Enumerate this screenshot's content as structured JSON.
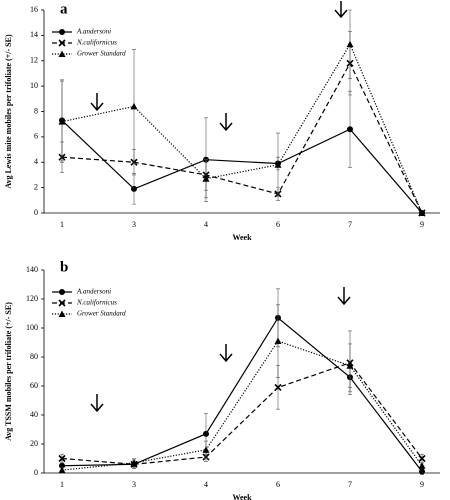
{
  "chart_data": [
    {
      "type": "line",
      "title": "a",
      "xlabel": "Week",
      "ylabel": "Avg Lewis mite mobiles per trifoliate (+/- SE)",
      "categories": [
        "1",
        "3",
        "4",
        "6",
        "7",
        "9"
      ],
      "ylim": [
        0,
        16
      ],
      "yticks": [
        0,
        2,
        4,
        6,
        8,
        10,
        12,
        14,
        16
      ],
      "legend": "upper left",
      "series": [
        {
          "name": "A.andersoni",
          "color": "#000000",
          "marker": "circle",
          "line_style": "solid",
          "values": [
            7.3,
            1.9,
            4.2,
            3.9,
            6.6,
            0
          ],
          "errors": [
            3.2,
            1.2,
            3.3,
            0.5,
            3.0,
            0
          ]
        },
        {
          "name": "N.californicus",
          "color": "#000000",
          "marker": "x",
          "line_style": "dashed",
          "values": [
            4.4,
            4.0,
            3.0,
            1.5,
            11.8,
            0
          ],
          "errors": [
            1.2,
            1.0,
            1.2,
            0.5,
            2.5,
            0
          ]
        },
        {
          "name": "Grower Standard",
          "color": "#000000",
          "marker": "triangle",
          "line_style": "dotted",
          "values": [
            7.2,
            8.4,
            2.7,
            3.8,
            13.3,
            0
          ],
          "errors": [
            3.2,
            4.5,
            1.5,
            2.5,
            2.7,
            0
          ]
        }
      ]
    },
    {
      "type": "line",
      "title": "b",
      "xlabel": "Week",
      "ylabel": "Avg TSSM mobiles per trifoliate (+/- SE)",
      "categories": [
        "1",
        "3",
        "4",
        "6",
        "7",
        "9"
      ],
      "ylim": [
        0,
        140
      ],
      "yticks": [
        0,
        20,
        40,
        60,
        80,
        100,
        120,
        140
      ],
      "legend": "upper left",
      "series": [
        {
          "name": "A.andersoni",
          "color": "#000000",
          "marker": "circle",
          "line_style": "solid",
          "values": [
            5,
            6,
            27,
            107,
            66,
            1
          ],
          "errors": [
            4,
            3,
            14,
            20,
            10,
            2
          ]
        },
        {
          "name": "N.californicus",
          "color": "#000000",
          "marker": "x",
          "line_style": "dashed",
          "values": [
            10,
            6,
            11,
            59,
            76,
            10
          ],
          "errors": [
            3,
            3,
            3,
            15,
            22,
            3
          ]
        },
        {
          "name": "Grower Standard",
          "color": "#000000",
          "marker": "triangle",
          "line_style": "dotted",
          "values": [
            2,
            7,
            16,
            91,
            74,
            5
          ],
          "errors": [
            2,
            3,
            6,
            25,
            15,
            2
          ]
        }
      ]
    }
  ]
}
